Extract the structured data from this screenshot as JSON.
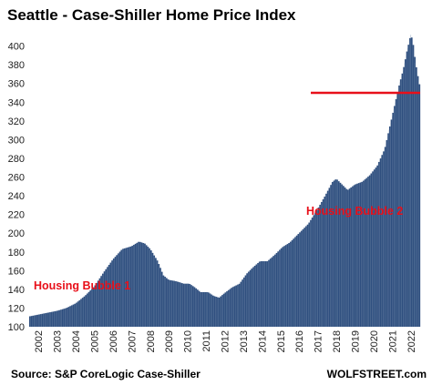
{
  "chart_data": {
    "type": "bar",
    "title": "Seattle - Case-Shiller Home Price Index",
    "xlabel": "",
    "ylabel": "",
    "ylim": [
      100,
      420
    ],
    "yticks": [
      100,
      120,
      140,
      160,
      180,
      200,
      220,
      240,
      260,
      280,
      300,
      320,
      340,
      360,
      380,
      400
    ],
    "xtick_labels": [
      "2002",
      "2003",
      "2004",
      "2005",
      "2006",
      "2007",
      "2008",
      "2009",
      "2010",
      "2011",
      "2012",
      "2013",
      "2014",
      "2015",
      "2016",
      "2017",
      "2018",
      "2019",
      "2020",
      "2021",
      "2022"
    ],
    "bar_color": "#2f4f7f",
    "start_year": 2002,
    "keypoints": [
      [
        2002.0,
        111
      ],
      [
        2002.5,
        113
      ],
      [
        2003.0,
        115
      ],
      [
        2003.5,
        117
      ],
      [
        2004.0,
        120
      ],
      [
        2004.5,
        125
      ],
      [
        2005.0,
        133
      ],
      [
        2005.5,
        143
      ],
      [
        2006.0,
        158
      ],
      [
        2006.5,
        172
      ],
      [
        2007.0,
        183
      ],
      [
        2007.5,
        186
      ],
      [
        2007.9,
        191
      ],
      [
        2008.2,
        189
      ],
      [
        2008.5,
        183
      ],
      [
        2008.9,
        170
      ],
      [
        2009.2,
        155
      ],
      [
        2009.5,
        150
      ],
      [
        2009.8,
        149
      ],
      [
        2010.0,
        148
      ],
      [
        2010.3,
        146
      ],
      [
        2010.6,
        146
      ],
      [
        2010.9,
        142
      ],
      [
        2011.2,
        137
      ],
      [
        2011.6,
        137
      ],
      [
        2011.9,
        133
      ],
      [
        2012.2,
        131
      ],
      [
        2012.5,
        136
      ],
      [
        2012.9,
        142
      ],
      [
        2013.3,
        146
      ],
      [
        2013.7,
        157
      ],
      [
        2014.0,
        163
      ],
      [
        2014.4,
        170
      ],
      [
        2014.8,
        170
      ],
      [
        2015.2,
        177
      ],
      [
        2015.6,
        185
      ],
      [
        2016.0,
        190
      ],
      [
        2016.5,
        200
      ],
      [
        2017.0,
        210
      ],
      [
        2017.5,
        226
      ],
      [
        2017.9,
        240
      ],
      [
        2018.3,
        255
      ],
      [
        2018.5,
        258
      ],
      [
        2018.8,
        252
      ],
      [
        2019.1,
        246
      ],
      [
        2019.5,
        252
      ],
      [
        2019.9,
        255
      ],
      [
        2020.3,
        262
      ],
      [
        2020.7,
        272
      ],
      [
        2021.1,
        290
      ],
      [
        2021.5,
        325
      ],
      [
        2021.9,
        360
      ],
      [
        2022.1,
        375
      ],
      [
        2022.3,
        395
      ],
      [
        2022.5,
        412
      ],
      [
        2022.6,
        405
      ],
      [
        2022.75,
        382
      ],
      [
        2022.9,
        365
      ],
      [
        2023.0,
        355
      ]
    ],
    "reference_line": {
      "value": 350,
      "color": "#e8101a"
    },
    "annotations": [
      "Housing Bubble 1",
      "Housing Bubble 2"
    ]
  },
  "footer": {
    "source": "Source: S&P CoreLogic Case-Shiller",
    "brand": "WOLFSTREET.com"
  }
}
